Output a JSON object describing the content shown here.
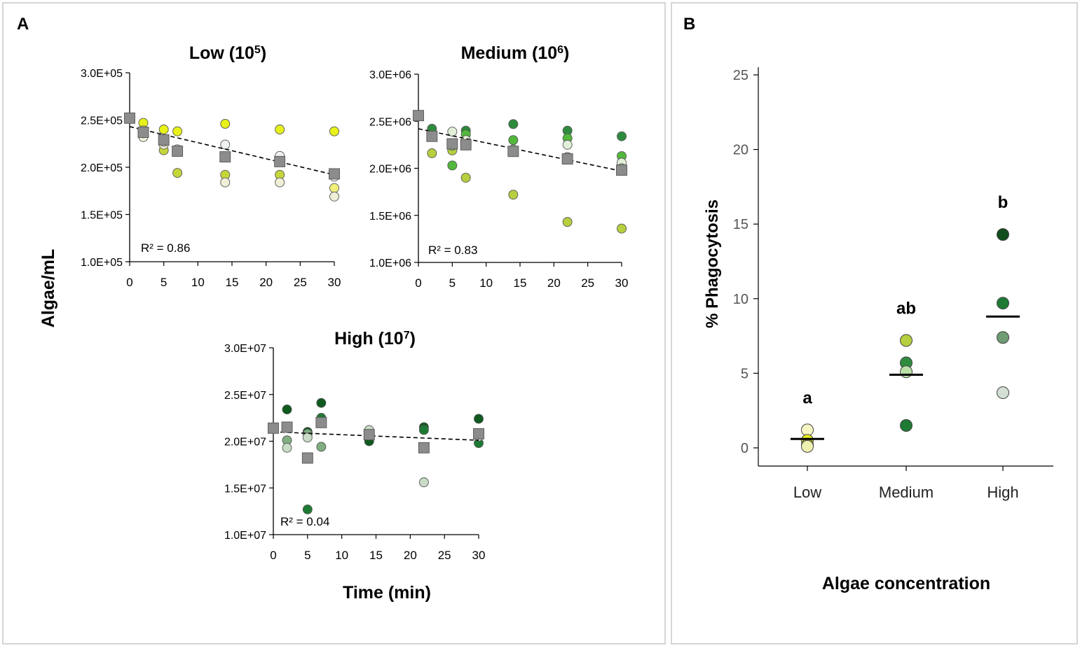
{
  "panels": {
    "a_label": "A",
    "b_label": "B"
  },
  "axis_titles": {
    "a_ylabel": "Algae/mL",
    "a_xlabel": "Time (min)",
    "b_ylabel": "% Phagocytosis",
    "b_xlabel": "Algae concentration"
  },
  "chart_data": [
    {
      "id": "low",
      "type": "scatter",
      "title": "Low (10",
      "title_exp": "5",
      "title_close": ")",
      "xlabel": "Time (min)",
      "ylabel": "Algae/mL",
      "xlim": [
        0,
        30
      ],
      "ylim": [
        100000,
        300000
      ],
      "xticks": [
        0,
        5,
        10,
        15,
        20,
        25,
        30
      ],
      "yticks": [
        100000,
        150000,
        200000,
        250000,
        300000
      ],
      "ytick_labels": [
        "1.0E+05",
        "1.5E+05",
        "2.0E+05",
        "2.5E+05",
        "3.0E+05"
      ],
      "r2_label": "R² = 0.86",
      "series": [
        {
          "name": "rep1",
          "color": "#e8f21a",
          "points": [
            [
              2,
              247000
            ],
            [
              5,
              240000
            ],
            [
              7,
              238000
            ],
            [
              14,
              246000
            ],
            [
              22,
              240000
            ],
            [
              30,
              238000
            ]
          ]
        },
        {
          "name": "rep2",
          "color": "#f0f07a",
          "points": [
            [
              2,
              239000
            ],
            [
              5,
              230000
            ],
            [
              14,
              211000
            ],
            [
              22,
              208000
            ],
            [
              30,
              178000
            ]
          ]
        },
        {
          "name": "rep3",
          "color": "#c5d63a",
          "points": [
            [
              5,
              218000
            ],
            [
              7,
              194000
            ],
            [
              14,
              192000
            ],
            [
              22,
              192000
            ],
            [
              30,
              193000
            ]
          ]
        },
        {
          "name": "rep4",
          "color": "#f0f0d8",
          "points": [
            [
              2,
              232000
            ],
            [
              5,
              224000
            ],
            [
              7,
              219000
            ],
            [
              14,
              184000
            ],
            [
              22,
              184000
            ],
            [
              30,
              169000
            ]
          ]
        },
        {
          "name": "rep5",
          "color": "#eef2ee",
          "points": [
            [
              2,
              236000
            ],
            [
              5,
              227000
            ],
            [
              14,
              224000
            ],
            [
              22,
              212000
            ],
            [
              30,
              190000
            ]
          ]
        }
      ],
      "mean": {
        "name": "mean",
        "color": "#8c8c8c",
        "points": [
          [
            0,
            252000
          ],
          [
            2,
            237000
          ],
          [
            5,
            229000
          ],
          [
            7,
            217000
          ],
          [
            14,
            211000
          ],
          [
            22,
            206000
          ],
          [
            30,
            193000
          ]
        ]
      },
      "trend": [
        [
          0,
          243000
        ],
        [
          30,
          192000
        ]
      ]
    },
    {
      "id": "medium",
      "type": "scatter",
      "title": "Medium (10",
      "title_exp": "6",
      "title_close": ")",
      "xlabel": "Time (min)",
      "ylabel": "Algae/mL",
      "xlim": [
        0,
        30
      ],
      "ylim": [
        1000000,
        3000000
      ],
      "xticks": [
        0,
        5,
        10,
        15,
        20,
        25,
        30
      ],
      "yticks": [
        1000000,
        1500000,
        2000000,
        2500000,
        3000000
      ],
      "ytick_labels": [
        "1.0E+06",
        "1.5E+06",
        "2.0E+06",
        "2.5E+06",
        "3.0E+06"
      ],
      "r2_label": "R² = 0.83",
      "series": [
        {
          "name": "rep1",
          "color": "#2e8b3e",
          "points": [
            [
              2,
              2420000
            ],
            [
              7,
              2400000
            ],
            [
              14,
              2470000
            ],
            [
              22,
              2400000
            ],
            [
              30,
              2340000
            ]
          ]
        },
        {
          "name": "rep2",
          "color": "#52b83c",
          "points": [
            [
              5,
              2030000
            ],
            [
              7,
              2360000
            ],
            [
              14,
              2300000
            ],
            [
              22,
              2320000
            ],
            [
              30,
              2130000
            ]
          ]
        },
        {
          "name": "rep3",
          "color": "#b5cf3e",
          "points": [
            [
              2,
              2160000
            ],
            [
              5,
              2190000
            ],
            [
              7,
              1900000
            ],
            [
              14,
              1720000
            ],
            [
              22,
              1430000
            ],
            [
              30,
              1360000
            ]
          ]
        },
        {
          "name": "rep4",
          "color": "#e2f0da",
          "points": [
            [
              5,
              2390000
            ],
            [
              7,
              2300000
            ],
            [
              22,
              2250000
            ],
            [
              30,
              2060000
            ]
          ]
        },
        {
          "name": "rep5",
          "color": "#a8d8a0",
          "points": [
            [
              2,
              2350000
            ],
            [
              5,
              2240000
            ],
            [
              14,
              2200000
            ],
            [
              22,
              2120000
            ],
            [
              30,
              2000000
            ]
          ]
        }
      ],
      "mean": {
        "name": "mean",
        "color": "#8c8c8c",
        "points": [
          [
            0,
            2560000
          ],
          [
            2,
            2340000
          ],
          [
            5,
            2260000
          ],
          [
            7,
            2250000
          ],
          [
            14,
            2180000
          ],
          [
            22,
            2100000
          ],
          [
            30,
            1980000
          ]
        ]
      },
      "trend": [
        [
          0,
          2420000
        ],
        [
          30,
          1970000
        ]
      ]
    },
    {
      "id": "high",
      "type": "scatter",
      "title": "High (10",
      "title_exp": "7",
      "title_close": ")",
      "xlabel": "Time (min)",
      "ylabel": "Algae/mL",
      "xlim": [
        0,
        30
      ],
      "ylim": [
        10000000,
        30000000
      ],
      "xticks": [
        0,
        5,
        10,
        15,
        20,
        25,
        30
      ],
      "yticks": [
        10000000,
        15000000,
        20000000,
        25000000,
        30000000
      ],
      "ytick_labels": [
        "1.0E+07",
        "1.5E+07",
        "2.0E+07",
        "2.5E+07",
        "3.0E+07"
      ],
      "r2_label": "R² = 0.04",
      "series": [
        {
          "name": "rep1",
          "color": "#0f5a1e",
          "points": [
            [
              2,
              23400000
            ],
            [
              5,
              21000000
            ],
            [
              7,
              24100000
            ],
            [
              14,
              20000000
            ],
            [
              22,
              21500000
            ],
            [
              30,
              22400000
            ]
          ]
        },
        {
          "name": "rep2",
          "color": "#1e7a33",
          "points": [
            [
              5,
              12700000
            ],
            [
              7,
              22500000
            ],
            [
              22,
              21200000
            ],
            [
              30,
              19800000
            ]
          ]
        },
        {
          "name": "rep3",
          "color": "#7fae82",
          "points": [
            [
              2,
              20100000
            ],
            [
              5,
              20800000
            ],
            [
              7,
              19400000
            ],
            [
              14,
              20900000
            ],
            [
              22,
              19300000
            ]
          ]
        },
        {
          "name": "rep4",
          "color": "#c8dcc6",
          "points": [
            [
              2,
              19300000
            ],
            [
              5,
              20400000
            ],
            [
              14,
              21200000
            ],
            [
              22,
              15600000
            ],
            [
              30,
              20500000
            ]
          ]
        }
      ],
      "mean": {
        "name": "mean",
        "color": "#8c8c8c",
        "points": [
          [
            0,
            21400000
          ],
          [
            2,
            21500000
          ],
          [
            5,
            18200000
          ],
          [
            7,
            22000000
          ],
          [
            14,
            20700000
          ],
          [
            22,
            19300000
          ],
          [
            30,
            20800000
          ]
        ]
      },
      "trend": [
        [
          0,
          21000000
        ],
        [
          30,
          20100000
        ]
      ]
    },
    {
      "id": "phago",
      "type": "scatter",
      "title": "",
      "xlabel": "Algae concentration",
      "ylabel": "% Phagocytosis",
      "ylim": [
        0,
        25
      ],
      "yticks": [
        0,
        5,
        10,
        15,
        20,
        25
      ],
      "categories": [
        "Low",
        "Medium",
        "High"
      ],
      "significance": [
        "a",
        "ab",
        "b"
      ],
      "groups": [
        {
          "category": "Low",
          "mean": 0.6,
          "points": [
            {
              "value": 1.2,
              "color": "#f6f6c2"
            },
            {
              "value": 0.5,
              "color": "#e8f21a"
            },
            {
              "value": 0.2,
              "color": "#c5d63a"
            },
            {
              "value": 0.1,
              "color": "#eef0b0"
            }
          ]
        },
        {
          "category": "Medium",
          "mean": 4.9,
          "points": [
            {
              "value": 7.2,
              "color": "#b5cf3e"
            },
            {
              "value": 5.7,
              "color": "#2e8b3e"
            },
            {
              "value": 5.1,
              "color": "#b8e0a8"
            },
            {
              "value": 1.5,
              "color": "#1e7a33"
            }
          ]
        },
        {
          "category": "High",
          "mean": 8.8,
          "points": [
            {
              "value": 14.3,
              "color": "#0f4d1c"
            },
            {
              "value": 9.7,
              "color": "#1e7a33"
            },
            {
              "value": 7.4,
              "color": "#6f9c72"
            },
            {
              "value": 3.7,
              "color": "#d2dfd2"
            }
          ]
        }
      ]
    }
  ]
}
